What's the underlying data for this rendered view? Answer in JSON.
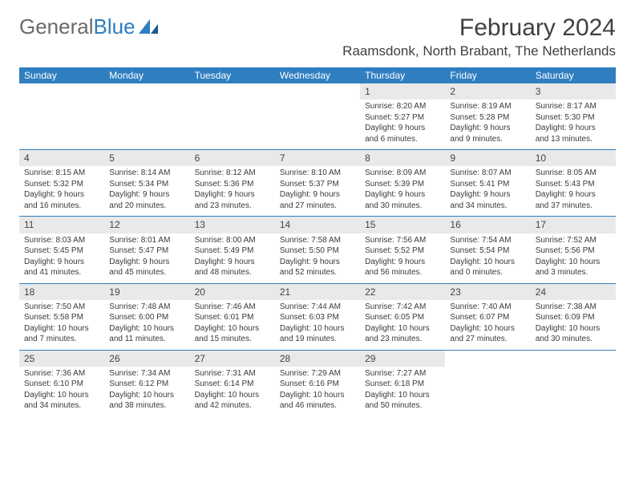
{
  "logo": {
    "text1": "General",
    "text2": "Blue"
  },
  "title": "February 2024",
  "location": "Raamsdonk, North Brabant, The Netherlands",
  "columns": [
    "Sunday",
    "Monday",
    "Tuesday",
    "Wednesday",
    "Thursday",
    "Friday",
    "Saturday"
  ],
  "colors": {
    "header_bg": "#2f7ec0",
    "header_text": "#ffffff",
    "daynum_bg": "#e9e9e9",
    "row_border": "#2f7ec0",
    "page_bg": "#ffffff",
    "text": "#3a3a3a"
  },
  "fonts": {
    "title_size_pt": 22,
    "location_size_pt": 13,
    "header_size_pt": 9,
    "body_size_pt": 7.5
  },
  "weeks": [
    [
      null,
      null,
      null,
      null,
      {
        "n": "1",
        "sunrise": "8:20 AM",
        "sunset": "5:27 PM",
        "dl1": "Daylight: 9 hours",
        "dl2": "and 6 minutes."
      },
      {
        "n": "2",
        "sunrise": "8:19 AM",
        "sunset": "5:28 PM",
        "dl1": "Daylight: 9 hours",
        "dl2": "and 9 minutes."
      },
      {
        "n": "3",
        "sunrise": "8:17 AM",
        "sunset": "5:30 PM",
        "dl1": "Daylight: 9 hours",
        "dl2": "and 13 minutes."
      }
    ],
    [
      {
        "n": "4",
        "sunrise": "8:15 AM",
        "sunset": "5:32 PM",
        "dl1": "Daylight: 9 hours",
        "dl2": "and 16 minutes."
      },
      {
        "n": "5",
        "sunrise": "8:14 AM",
        "sunset": "5:34 PM",
        "dl1": "Daylight: 9 hours",
        "dl2": "and 20 minutes."
      },
      {
        "n": "6",
        "sunrise": "8:12 AM",
        "sunset": "5:36 PM",
        "dl1": "Daylight: 9 hours",
        "dl2": "and 23 minutes."
      },
      {
        "n": "7",
        "sunrise": "8:10 AM",
        "sunset": "5:37 PM",
        "dl1": "Daylight: 9 hours",
        "dl2": "and 27 minutes."
      },
      {
        "n": "8",
        "sunrise": "8:09 AM",
        "sunset": "5:39 PM",
        "dl1": "Daylight: 9 hours",
        "dl2": "and 30 minutes."
      },
      {
        "n": "9",
        "sunrise": "8:07 AM",
        "sunset": "5:41 PM",
        "dl1": "Daylight: 9 hours",
        "dl2": "and 34 minutes."
      },
      {
        "n": "10",
        "sunrise": "8:05 AM",
        "sunset": "5:43 PM",
        "dl1": "Daylight: 9 hours",
        "dl2": "and 37 minutes."
      }
    ],
    [
      {
        "n": "11",
        "sunrise": "8:03 AM",
        "sunset": "5:45 PM",
        "dl1": "Daylight: 9 hours",
        "dl2": "and 41 minutes."
      },
      {
        "n": "12",
        "sunrise": "8:01 AM",
        "sunset": "5:47 PM",
        "dl1": "Daylight: 9 hours",
        "dl2": "and 45 minutes."
      },
      {
        "n": "13",
        "sunrise": "8:00 AM",
        "sunset": "5:49 PM",
        "dl1": "Daylight: 9 hours",
        "dl2": "and 48 minutes."
      },
      {
        "n": "14",
        "sunrise": "7:58 AM",
        "sunset": "5:50 PM",
        "dl1": "Daylight: 9 hours",
        "dl2": "and 52 minutes."
      },
      {
        "n": "15",
        "sunrise": "7:56 AM",
        "sunset": "5:52 PM",
        "dl1": "Daylight: 9 hours",
        "dl2": "and 56 minutes."
      },
      {
        "n": "16",
        "sunrise": "7:54 AM",
        "sunset": "5:54 PM",
        "dl1": "Daylight: 10 hours",
        "dl2": "and 0 minutes."
      },
      {
        "n": "17",
        "sunrise": "7:52 AM",
        "sunset": "5:56 PM",
        "dl1": "Daylight: 10 hours",
        "dl2": "and 3 minutes."
      }
    ],
    [
      {
        "n": "18",
        "sunrise": "7:50 AM",
        "sunset": "5:58 PM",
        "dl1": "Daylight: 10 hours",
        "dl2": "and 7 minutes."
      },
      {
        "n": "19",
        "sunrise": "7:48 AM",
        "sunset": "6:00 PM",
        "dl1": "Daylight: 10 hours",
        "dl2": "and 11 minutes."
      },
      {
        "n": "20",
        "sunrise": "7:46 AM",
        "sunset": "6:01 PM",
        "dl1": "Daylight: 10 hours",
        "dl2": "and 15 minutes."
      },
      {
        "n": "21",
        "sunrise": "7:44 AM",
        "sunset": "6:03 PM",
        "dl1": "Daylight: 10 hours",
        "dl2": "and 19 minutes."
      },
      {
        "n": "22",
        "sunrise": "7:42 AM",
        "sunset": "6:05 PM",
        "dl1": "Daylight: 10 hours",
        "dl2": "and 23 minutes."
      },
      {
        "n": "23",
        "sunrise": "7:40 AM",
        "sunset": "6:07 PM",
        "dl1": "Daylight: 10 hours",
        "dl2": "and 27 minutes."
      },
      {
        "n": "24",
        "sunrise": "7:38 AM",
        "sunset": "6:09 PM",
        "dl1": "Daylight: 10 hours",
        "dl2": "and 30 minutes."
      }
    ],
    [
      {
        "n": "25",
        "sunrise": "7:36 AM",
        "sunset": "6:10 PM",
        "dl1": "Daylight: 10 hours",
        "dl2": "and 34 minutes."
      },
      {
        "n": "26",
        "sunrise": "7:34 AM",
        "sunset": "6:12 PM",
        "dl1": "Daylight: 10 hours",
        "dl2": "and 38 minutes."
      },
      {
        "n": "27",
        "sunrise": "7:31 AM",
        "sunset": "6:14 PM",
        "dl1": "Daylight: 10 hours",
        "dl2": "and 42 minutes."
      },
      {
        "n": "28",
        "sunrise": "7:29 AM",
        "sunset": "6:16 PM",
        "dl1": "Daylight: 10 hours",
        "dl2": "and 46 minutes."
      },
      {
        "n": "29",
        "sunrise": "7:27 AM",
        "sunset": "6:18 PM",
        "dl1": "Daylight: 10 hours",
        "dl2": "and 50 minutes."
      },
      null,
      null
    ]
  ],
  "labels": {
    "sunrise": "Sunrise:",
    "sunset": "Sunset:"
  }
}
